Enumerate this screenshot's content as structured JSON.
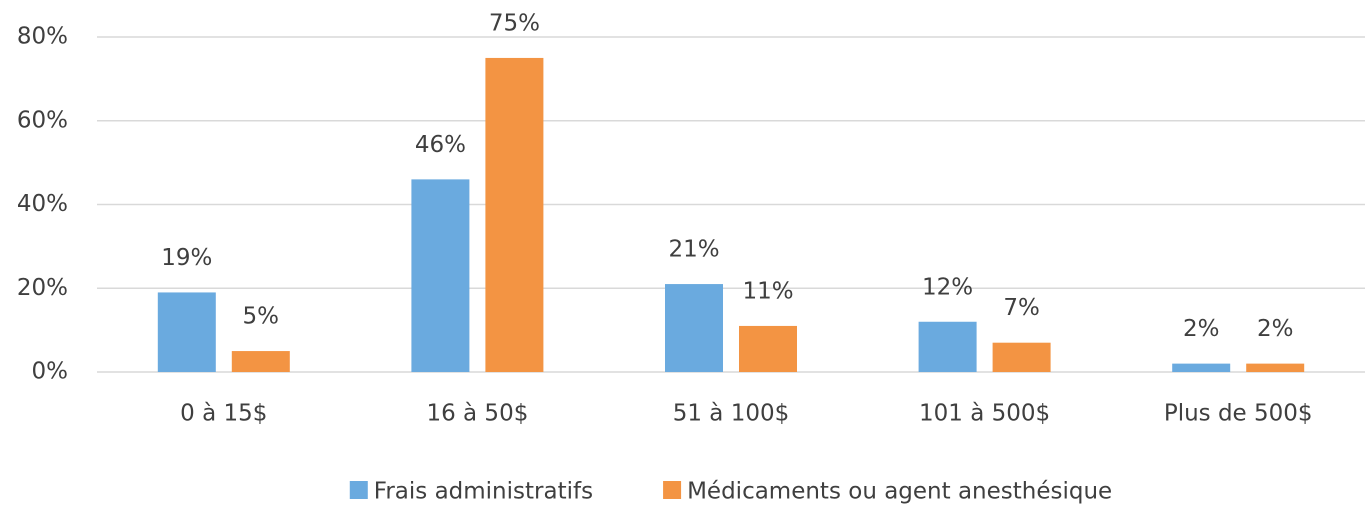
{
  "chart_data": {
    "type": "bar",
    "categories": [
      "0 à 15$",
      "16 à 50$",
      "51 à 100$",
      "101 à 500$",
      "Plus de 500$"
    ],
    "series": [
      {
        "name": "Frais administratifs",
        "color": "#6aaadf",
        "values": [
          19,
          46,
          21,
          12,
          2
        ],
        "value_labels": [
          "19%",
          "46%",
          "21%",
          "12%",
          "2%"
        ]
      },
      {
        "name": "Médicaments ou agent anesthésique",
        "color": "#f39443",
        "values": [
          5,
          75,
          11,
          7,
          2
        ],
        "value_labels": [
          "5%",
          "75%",
          "11%",
          "7%",
          "2%"
        ]
      }
    ],
    "ylim": [
      0,
      80
    ],
    "yticks": [
      {
        "value": 0,
        "label": "0%"
      },
      {
        "value": 20,
        "label": "20%"
      },
      {
        "value": 40,
        "label": "40%"
      },
      {
        "value": 60,
        "label": "60%"
      },
      {
        "value": 80,
        "label": "80%"
      }
    ],
    "grid": true,
    "legend": "bottom"
  }
}
